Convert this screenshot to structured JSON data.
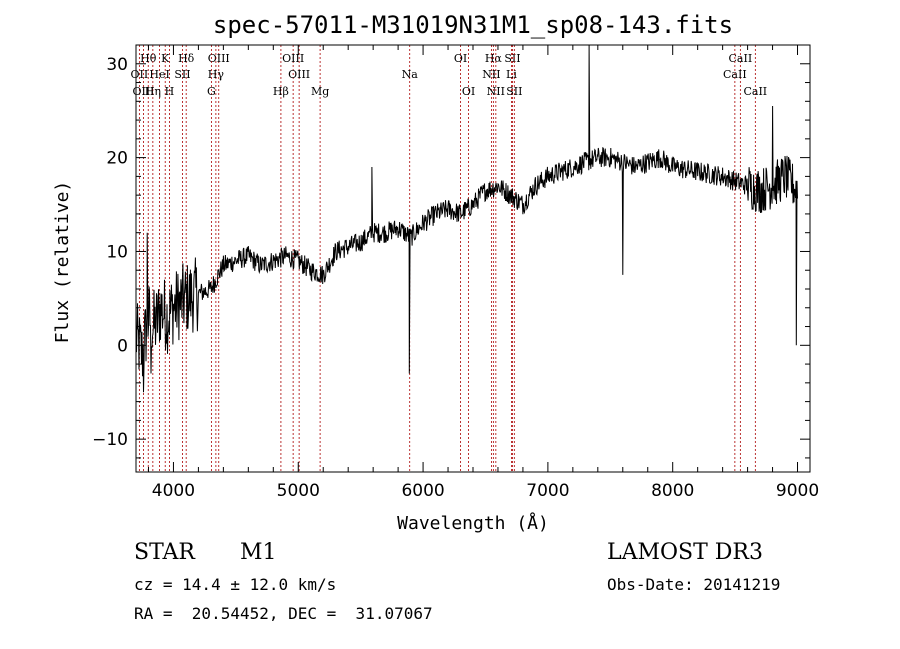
{
  "chart_data": {
    "type": "line",
    "title": "spec-57011-M31019N31M1_sp08-143.fits",
    "xlabel": "Wavelength (Å)",
    "ylabel": "Flux (relative)",
    "xlim": [
      3700,
      9100
    ],
    "ylim": [
      -13.5,
      32
    ],
    "xticks": [
      4000,
      5000,
      6000,
      7000,
      8000,
      9000
    ],
    "yticks": [
      -10,
      0,
      10,
      20,
      30
    ],
    "spectrum_knots": [
      [
        3700,
        1
      ],
      [
        3750,
        -1
      ],
      [
        3800,
        3
      ],
      [
        3850,
        2
      ],
      [
        3900,
        4
      ],
      [
        3950,
        3
      ],
      [
        4000,
        4
      ],
      [
        4100,
        5
      ],
      [
        4200,
        5.5
      ],
      [
        4300,
        6
      ],
      [
        4400,
        8.5
      ],
      [
        4500,
        9
      ],
      [
        4600,
        9.5
      ],
      [
        4700,
        8.5
      ],
      [
        4800,
        9
      ],
      [
        4900,
        9.5
      ],
      [
        5000,
        9
      ],
      [
        5100,
        8
      ],
      [
        5200,
        7.5
      ],
      [
        5300,
        10
      ],
      [
        5400,
        10.5
      ],
      [
        5500,
        11
      ],
      [
        5600,
        12
      ],
      [
        5700,
        12
      ],
      [
        5800,
        12.5
      ],
      [
        5850,
        12
      ],
      [
        5900,
        11.5
      ],
      [
        6000,
        13
      ],
      [
        6100,
        14
      ],
      [
        6200,
        14.5
      ],
      [
        6300,
        14
      ],
      [
        6400,
        15
      ],
      [
        6500,
        16.5
      ],
      [
        6600,
        17
      ],
      [
        6700,
        16
      ],
      [
        6800,
        15
      ],
      [
        6900,
        17
      ],
      [
        7000,
        18
      ],
      [
        7100,
        18.5
      ],
      [
        7200,
        19
      ],
      [
        7300,
        19.5
      ],
      [
        7400,
        20
      ],
      [
        7500,
        20
      ],
      [
        7600,
        19.5
      ],
      [
        7700,
        19
      ],
      [
        7800,
        19.5
      ],
      [
        7900,
        20
      ],
      [
        8000,
        19
      ],
      [
        8200,
        18.5
      ],
      [
        8400,
        18
      ],
      [
        8500,
        17.5
      ],
      [
        8600,
        17
      ],
      [
        8700,
        16.5
      ],
      [
        8800,
        17
      ],
      [
        8900,
        18
      ],
      [
        9000,
        16.5
      ]
    ],
    "spectrum_spikes": [
      [
        3760,
        -5
      ],
      [
        3790,
        12
      ],
      [
        3820,
        -3
      ],
      [
        5590,
        19
      ],
      [
        5890,
        -3
      ],
      [
        7330,
        32
      ],
      [
        7600,
        7.5
      ],
      [
        8800,
        25.5
      ],
      [
        8990,
        0
      ]
    ],
    "spectral_lines": [
      {
        "label": "Hθ",
        "wavelength": 3798,
        "row": 0
      },
      {
        "label": "K",
        "wavelength": 3934,
        "row": 0
      },
      {
        "label": "Hδ",
        "wavelength": 4102,
        "row": 0
      },
      {
        "label": "OIII",
        "wavelength": 4363,
        "row": 0
      },
      {
        "label": "OIII",
        "wavelength": 4959,
        "row": 0
      },
      {
        "label": "OI",
        "wavelength": 6300,
        "row": 0
      },
      {
        "label": "Hα",
        "wavelength": 6563,
        "row": 0
      },
      {
        "label": "SII",
        "wavelength": 6716,
        "row": 0
      },
      {
        "label": "CaII",
        "wavelength": 8542,
        "row": 0
      },
      {
        "label": "OII",
        "wavelength": 3727,
        "row": 1
      },
      {
        "label": "HeI",
        "wavelength": 3889,
        "row": 1
      },
      {
        "label": "SII",
        "wavelength": 4072,
        "row": 1
      },
      {
        "label": "Hγ",
        "wavelength": 4340,
        "row": 1
      },
      {
        "label": "OIII",
        "wavelength": 5007,
        "row": 1
      },
      {
        "label": "Na",
        "wavelength": 5893,
        "row": 1
      },
      {
        "label": "NII",
        "wavelength": 6548,
        "row": 1
      },
      {
        "label": "Li",
        "wavelength": 6708,
        "row": 1
      },
      {
        "label": "CaII",
        "wavelength": 8498,
        "row": 1
      },
      {
        "label": "OIII",
        "wavelength": 3760,
        "row": 2
      },
      {
        "label": "Hη",
        "wavelength": 3835,
        "row": 2
      },
      {
        "label": "H",
        "wavelength": 3968,
        "row": 2
      },
      {
        "label": "G",
        "wavelength": 4304,
        "row": 2
      },
      {
        "label": "Hβ",
        "wavelength": 4861,
        "row": 2
      },
      {
        "label": "Mg",
        "wavelength": 5175,
        "row": 2
      },
      {
        "label": "OI",
        "wavelength": 6364,
        "row": 2
      },
      {
        "label": "NII",
        "wavelength": 6583,
        "row": 2
      },
      {
        "label": "SII",
        "wavelength": 6731,
        "row": 2
      },
      {
        "label": "CaII",
        "wavelength": 8662,
        "row": 2
      }
    ],
    "line_color": "#aa0000"
  },
  "info": {
    "object_class": "STAR",
    "subclass": "M1",
    "survey": "LAMOST DR3",
    "cz": "cz = 14.4 ± 12.0 km/s",
    "obs_date": "Obs-Date: 20141219",
    "coords": "RA =  20.54452, DEC =  31.07067"
  }
}
